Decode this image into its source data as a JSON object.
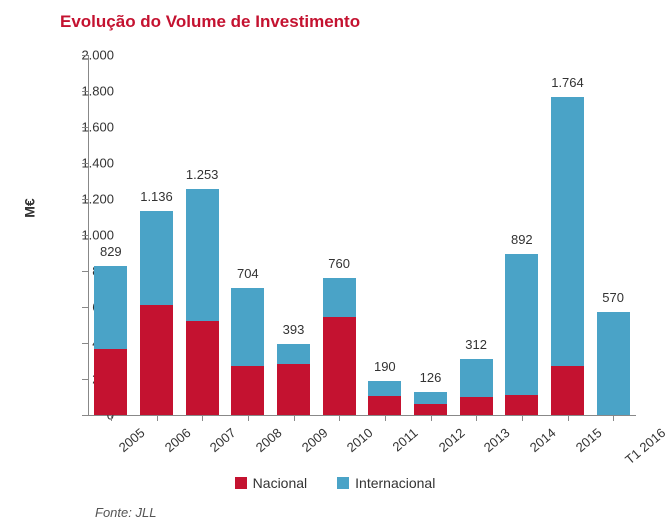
{
  "chart": {
    "type": "stacked-bar",
    "title": "Evolução do Volume de Investimento",
    "title_color": "#c41230",
    "title_fontsize": 17,
    "ylabel": "M€",
    "ylabel_fontsize": 14,
    "ylim": [
      0,
      2000
    ],
    "ytick_step": 200,
    "y_ticks": [
      0,
      200,
      400,
      600,
      800,
      1000,
      1200,
      1400,
      1600,
      1800,
      2000
    ],
    "y_tick_labels": [
      "0",
      "200",
      "400",
      "600",
      "800",
      "1.000",
      "1.200",
      "1.400",
      "1.600",
      "1.800",
      "2.000"
    ],
    "categories": [
      "2005",
      "2006",
      "2007",
      "2008",
      "2009",
      "2010",
      "2011",
      "2012",
      "2013",
      "2014",
      "2015",
      "T1 2016"
    ],
    "series": [
      {
        "name": "Nacional",
        "color": "#c41230",
        "values": [
          365,
          610,
          520,
          270,
          285,
          545,
          105,
          60,
          100,
          110,
          275,
          0
        ]
      },
      {
        "name": "Internacional",
        "color": "#4aa3c7",
        "values": [
          464,
          526,
          733,
          434,
          108,
          215,
          85,
          66,
          212,
          782,
          1489,
          570
        ]
      }
    ],
    "totals": [
      "829",
      "1.136",
      "1.253",
      "704",
      "393",
      "760",
      "190",
      "126",
      "312",
      "892",
      "1.764",
      "570"
    ],
    "bar_width_ratio": 0.72,
    "background_color": "#ffffff",
    "axis_color": "#888888",
    "text_color": "#333333"
  },
  "legend": {
    "items": [
      {
        "label": "Nacional",
        "color": "#c41230"
      },
      {
        "label": "Internacional",
        "color": "#4aa3c7"
      }
    ]
  },
  "source": "Fonte: JLL"
}
